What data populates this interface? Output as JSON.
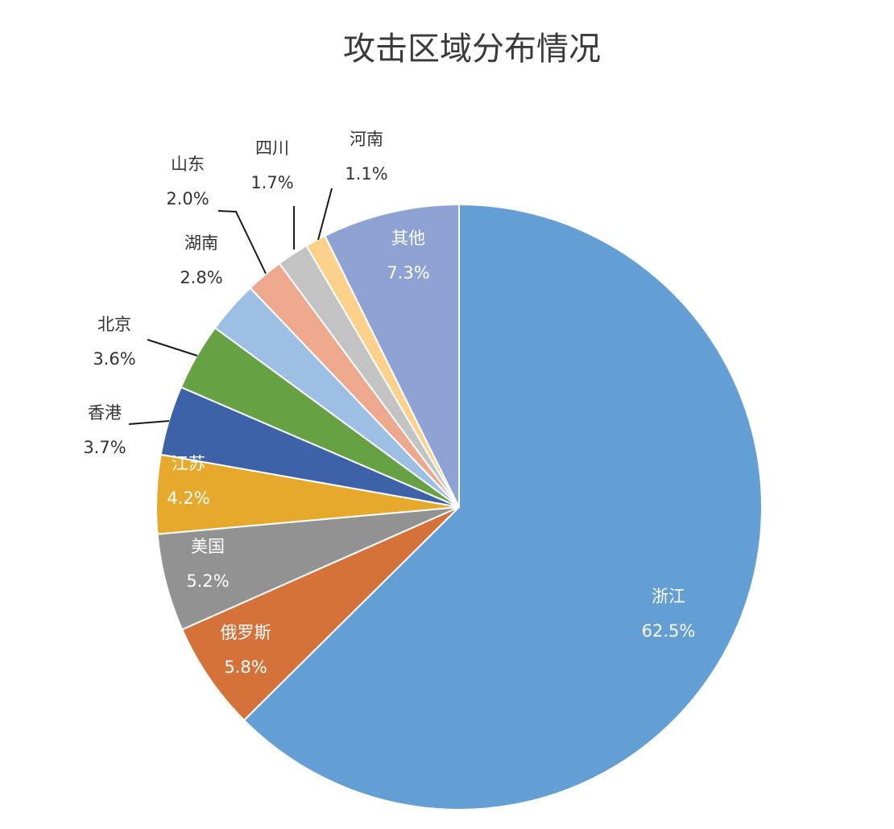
{
  "chart_data": {
    "type": "pie",
    "title": "攻击区域分布情况",
    "start_angle_deg": 0,
    "direction": "clockwise",
    "legend": "none",
    "data_labels": "category and percent",
    "slices": [
      {
        "name": "浙江",
        "value": 62.5,
        "label": "62.5%",
        "color": "#639ed4",
        "label_color": "#ffffff"
      },
      {
        "name": "俄罗斯",
        "value": 5.8,
        "label": "5.8%",
        "color": "#d5723a",
        "label_color": "#ffffff"
      },
      {
        "name": "美国",
        "value": 5.2,
        "label": "5.2%",
        "color": "#929292",
        "label_color": "#ffffff"
      },
      {
        "name": "江苏",
        "value": 4.2,
        "label": "4.2%",
        "color": "#e6a92b",
        "label_color": "#ffffff"
      },
      {
        "name": "香港",
        "value": 3.7,
        "label": "3.7%",
        "color": "#3d62a8",
        "label_color": "#333333"
      },
      {
        "name": "北京",
        "value": 3.6,
        "label": "3.6%",
        "color": "#66a144",
        "label_color": "#333333"
      },
      {
        "name": "湖南",
        "value": 2.8,
        "label": "2.8%",
        "color": "#9dbfe3",
        "label_color": "#333333"
      },
      {
        "name": "山东",
        "value": 2.0,
        "label": "2.0%",
        "color": "#eea88d",
        "label_color": "#333333"
      },
      {
        "name": "四川",
        "value": 1.7,
        "label": "1.7%",
        "color": "#c3c3c3",
        "label_color": "#333333"
      },
      {
        "name": "河南",
        "value": 1.1,
        "label": "1.1%",
        "color": "#fbd18c",
        "label_color": "#333333"
      },
      {
        "name": "其他",
        "value": 7.3,
        "label": "7.3%",
        "color": "#8ea3d3",
        "label_color": "#ffffff"
      }
    ]
  }
}
